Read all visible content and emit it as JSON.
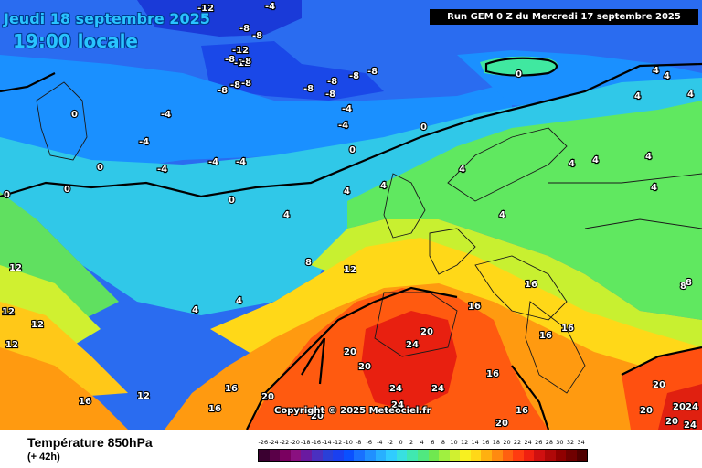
{
  "header": {
    "date_label": "Jeudi 18 septembre 2025",
    "time_label": "19:00 locale",
    "run_info": "Run GEM 0 Z du Mercredi 17 septembre 2025",
    "copyright": "Copyright © 2025 Meteociel.fr"
  },
  "footer": {
    "parameter": "Température 850hPa",
    "lead_time": "(+ 42h)"
  },
  "legend": {
    "ticks": [
      "-26",
      "-24",
      "-22",
      "-20",
      "-18",
      "-16",
      "-14",
      "-12",
      "-10",
      "-8",
      "-6",
      "-4",
      "-2",
      "0",
      "2",
      "4",
      "6",
      "8",
      "10",
      "12",
      "14",
      "16",
      "18",
      "20",
      "22",
      "24",
      "26",
      "28",
      "30",
      "32",
      "34"
    ],
    "colors": [
      "#3a0030",
      "#5a0048",
      "#7a0060",
      "#8a1080",
      "#6a1aa0",
      "#4a30c0",
      "#2a40d8",
      "#1a40f0",
      "#0a50ff",
      "#1870ff",
      "#2090ff",
      "#28b0ff",
      "#30ccff",
      "#38e0e0",
      "#40e8b0",
      "#50e880",
      "#70e850",
      "#a0f040",
      "#d0f030",
      "#f8f020",
      "#ffd818",
      "#ffb010",
      "#ff8a10",
      "#ff6010",
      "#ff3c10",
      "#f02010",
      "#d01010",
      "#b00808",
      "#900000",
      "#700000",
      "#500000"
    ]
  },
  "isotherm_labels": [
    "-12",
    "-4",
    "-8",
    "-12",
    "-8",
    "-8",
    "-12",
    "-8",
    "-8",
    "-8",
    "-8",
    "-8",
    "-8",
    "-8",
    "-8",
    "-8",
    "-4",
    "-4",
    "-4",
    "-4",
    "-4",
    "-4",
    "-4",
    "0",
    "0",
    "0",
    "0",
    "0",
    "0",
    "0",
    "0",
    "4",
    "4",
    "4",
    "4",
    "4",
    "4",
    "4",
    "4",
    "4",
    "4",
    "4",
    "4",
    "4",
    "4",
    "4",
    "8",
    "8",
    "8",
    "12",
    "12",
    "12",
    "12",
    "12",
    "12",
    "16",
    "16",
    "16",
    "16",
    "16",
    "16",
    "16",
    "16",
    "16",
    "20",
    "20",
    "20",
    "20",
    "20",
    "20",
    "20",
    "20",
    "20",
    "20",
    "24",
    "24",
    "24",
    "24",
    "24",
    "24"
  ],
  "colors": {
    "title_cyan": "#29c4ff",
    "run_box_bg": "#000000"
  }
}
